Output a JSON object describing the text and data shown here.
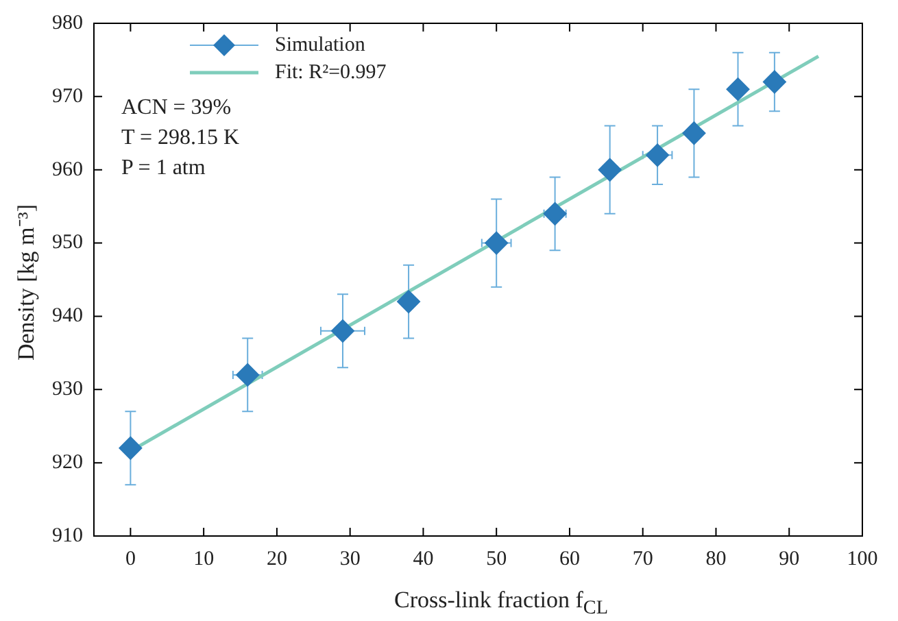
{
  "chart_data": {
    "type": "scatter",
    "xlabel": "Cross-link fraction f$_{CL}$",
    "ylabel": "Density [kg m⁻³]",
    "xlim": [
      -5,
      100
    ],
    "xticks": [
      0,
      10,
      20,
      30,
      40,
      50,
      60,
      70,
      80,
      90,
      100
    ],
    "ylim": [
      910,
      980
    ],
    "yticks": [
      910,
      920,
      930,
      940,
      950,
      960,
      970,
      980
    ],
    "grid": false,
    "legend": "top left",
    "series": [
      {
        "name": "Simulation",
        "type": "scatter",
        "marker": "diamond",
        "color": "#2a7ab9",
        "x": [
          0,
          16,
          29,
          38,
          50,
          58,
          65.5,
          72,
          77,
          83,
          88
        ],
        "values": [
          922,
          932,
          938,
          942,
          950,
          954,
          960,
          962,
          965,
          971,
          972
        ],
        "errors": [
          5,
          5,
          5,
          5,
          6,
          5,
          6,
          4,
          6,
          5,
          4
        ],
        "xerrors": [
          null,
          2,
          3,
          null,
          2,
          1.5,
          1,
          2,
          null,
          null,
          null
        ]
      },
      {
        "name": "Fit: R²=0.997",
        "type": "line",
        "color": "#7fcdbb",
        "x": [
          0,
          94
        ],
        "values": [
          921.6,
          975.5
        ]
      }
    ],
    "annotations": [
      "ACN = 39%",
      "T = 298.15 K",
      "P = 1 atm"
    ]
  }
}
